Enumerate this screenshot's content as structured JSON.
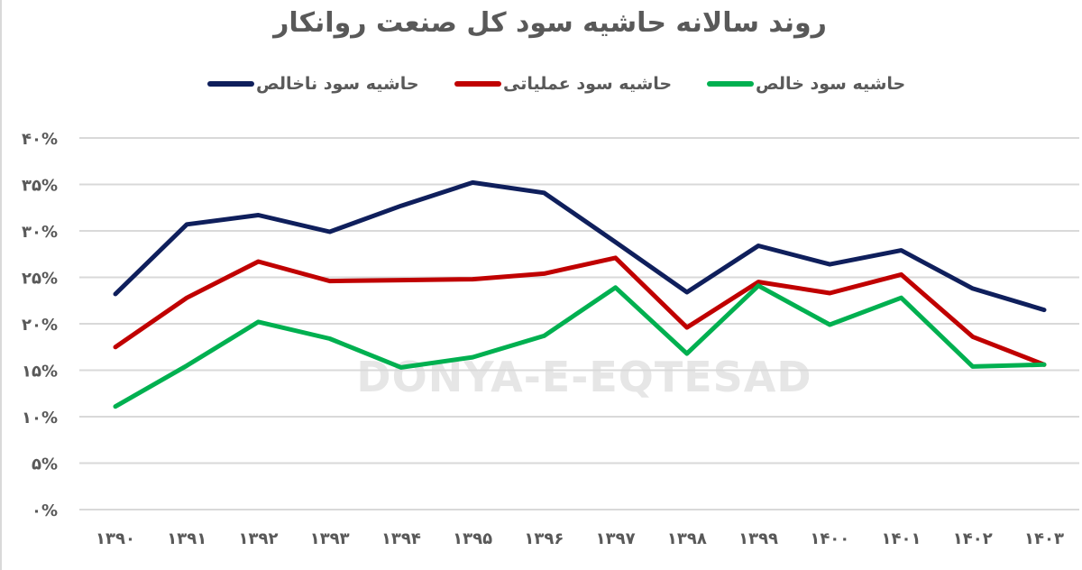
{
  "title": "روند سالانه حاشیه سود کل صنعت روانکار",
  "watermark": "DONYA-E-EQTESAD",
  "legend": [
    {
      "label": "حاشیه سود ناخالص",
      "color": "#0f1f5c"
    },
    {
      "label": "حاشیه سود عملیاتی",
      "color": "#c00000"
    },
    {
      "label": "حاشیه سود خالص",
      "color": "#00b050"
    }
  ],
  "y_ticks": [
    "۰%",
    "۵%",
    "۱۰%",
    "۱۵%",
    "۲۰%",
    "۲۵%",
    "۳۰%",
    "۳۵%",
    "۴۰%"
  ],
  "x_ticks": [
    "۱۳۹۰",
    "۱۳۹۱",
    "۱۳۹۲",
    "۱۳۹۳",
    "۱۳۹۴",
    "۱۳۹۵",
    "۱۳۹۶",
    "۱۳۹۷",
    "۱۳۹۸",
    "۱۳۹۹",
    "۱۴۰۰",
    "۱۴۰۱",
    "۱۴۰۲",
    "۱۴۰۳"
  ],
  "chart_data": {
    "type": "line",
    "title": "روند سالانه حاشیه سود کل صنعت روانکار",
    "xlabel": "",
    "ylabel": "",
    "ylim": [
      0,
      40
    ],
    "y_unit": "%",
    "grid": true,
    "legend_position": "top",
    "categories": [
      "1390",
      "1391",
      "1392",
      "1393",
      "1394",
      "1395",
      "1396",
      "1397",
      "1398",
      "1399",
      "1400",
      "1401",
      "1402",
      "1403"
    ],
    "series": [
      {
        "name": "حاشیه سود ناخالص",
        "color": "#0f1f5c",
        "values": [
          23.2,
          30.7,
          31.7,
          29.9,
          32.7,
          35.2,
          34.1,
          28.8,
          23.4,
          28.4,
          26.4,
          27.9,
          23.8,
          21.5
        ]
      },
      {
        "name": "حاشیه سود عملیاتی",
        "color": "#c00000",
        "values": [
          17.5,
          22.8,
          26.7,
          24.6,
          24.7,
          24.8,
          25.4,
          27.1,
          19.6,
          24.5,
          23.3,
          25.3,
          18.6,
          15.6
        ]
      },
      {
        "name": "حاشیه سود خالص",
        "color": "#00b050",
        "values": [
          11.1,
          15.5,
          20.2,
          18.4,
          15.3,
          16.4,
          18.7,
          23.9,
          16.8,
          24.1,
          19.9,
          22.8,
          15.4,
          15.6
        ]
      }
    ]
  }
}
